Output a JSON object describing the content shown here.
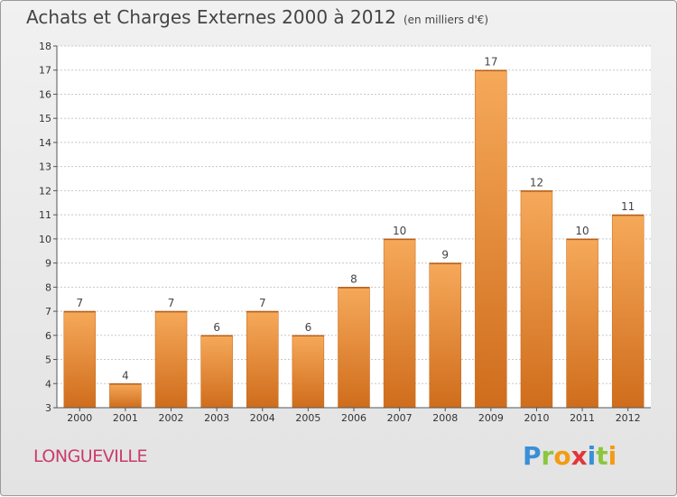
{
  "header": {
    "title": "Achats et Charges Externes 2000 à 2012",
    "unit": "(en milliers d'€)"
  },
  "footer": {
    "location": "LONGUEVILLE",
    "brand_letters": [
      {
        "ch": "P",
        "color": "#3a8fd6"
      },
      {
        "ch": "r",
        "color": "#8cc63f"
      },
      {
        "ch": "o",
        "color": "#f39c12"
      },
      {
        "ch": "x",
        "color": "#e2363a"
      },
      {
        "ch": "i",
        "color": "#3a8fd6"
      },
      {
        "ch": "t",
        "color": "#8cc63f"
      },
      {
        "ch": "i",
        "color": "#f39c12"
      }
    ]
  },
  "colors": {
    "bar_top": "#f6a95a",
    "bar_bottom": "#cf6d1c",
    "bar_edge": "#c4671b",
    "grid": "#c8c8c8",
    "axis": "#555555"
  },
  "chart_data": {
    "type": "bar",
    "title": "Achats et Charges Externes 2000 à 2012",
    "subtitle": "(en milliers d'€)",
    "xlabel": "",
    "ylabel": "",
    "categories": [
      "2000",
      "2001",
      "2002",
      "2003",
      "2004",
      "2005",
      "2006",
      "2007",
      "2008",
      "2009",
      "2010",
      "2011",
      "2012"
    ],
    "values": [
      7,
      4,
      7,
      6,
      7,
      6,
      8,
      10,
      9,
      17,
      12,
      10,
      11
    ],
    "ylim": [
      3,
      18
    ],
    "yticks": [
      3,
      4,
      5,
      6,
      7,
      8,
      9,
      10,
      11,
      12,
      13,
      14,
      15,
      16,
      17,
      18
    ],
    "grid": true,
    "data_labels": true
  }
}
